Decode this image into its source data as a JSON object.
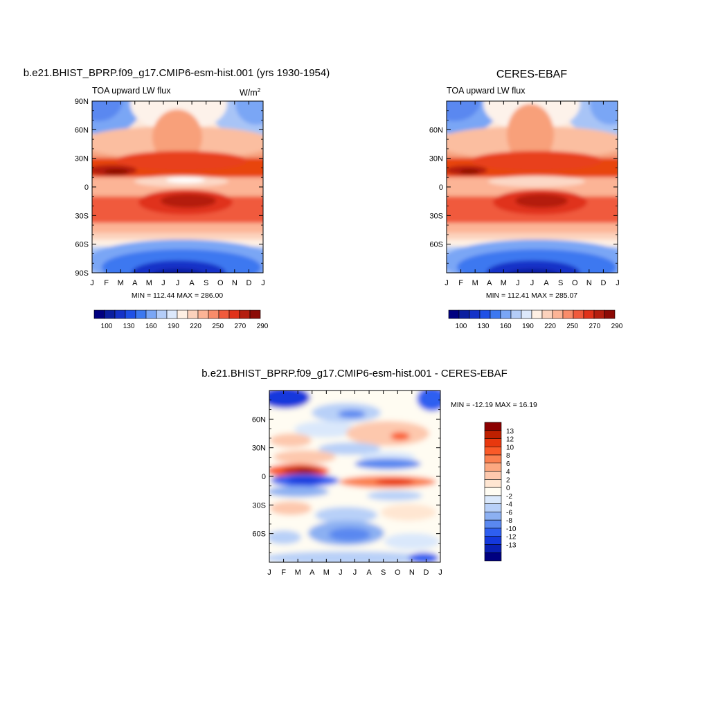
{
  "chart_data": [
    {
      "type": "heatmap",
      "title": "b.e21.BHIST_BPRP.f09_g17.CMIP6-esm-hist.001 (yrs 1930-1954)",
      "left_label": "TOA upward LW flux",
      "units_base": "W/m",
      "units_exp": "2",
      "x_ticks": [
        "J",
        "F",
        "M",
        "A",
        "M",
        "J",
        "J",
        "A",
        "S",
        "O",
        "N",
        "D",
        "J"
      ],
      "y_ticks": [
        "90N",
        "60N",
        "30N",
        "0",
        "30S",
        "60S",
        "90S"
      ],
      "stats": "MIN = 112.44 MAX = 286.00",
      "min": 112.44,
      "max": 286.0
    },
    {
      "type": "heatmap",
      "title": "CERES-EBAF",
      "left_label": "TOA upward LW flux",
      "x_ticks": [
        "J",
        "F",
        "M",
        "A",
        "M",
        "J",
        "J",
        "A",
        "S",
        "O",
        "N",
        "D",
        "J"
      ],
      "y_ticks": [
        "",
        "60N",
        "30N",
        "0",
        "30S",
        "60S",
        ""
      ],
      "stats": "MIN = 112.41 MAX = 285.07",
      "min": 112.41,
      "max": 285.07
    },
    {
      "type": "heatmap",
      "title": "b.e21.BHIST_BPRP.f09_g17.CMIP6-esm-hist.001 - CERES-EBAF",
      "x_ticks": [
        "J",
        "F",
        "M",
        "A",
        "M",
        "J",
        "J",
        "A",
        "S",
        "O",
        "N",
        "D",
        "J"
      ],
      "y_ticks": [
        "",
        "60N",
        "30N",
        "0",
        "30S",
        "60S",
        ""
      ],
      "stats": "MIN = -12.19 MAX =  16.19",
      "min": -12.19,
      "max": 16.19
    }
  ],
  "colorbar_top": {
    "labels": [
      "100",
      "130",
      "160",
      "190",
      "220",
      "250",
      "270",
      "290"
    ],
    "colors": [
      "#000080",
      "#0a1ea0",
      "#1432c8",
      "#1e50e6",
      "#3c78f0",
      "#7aa6f5",
      "#b4cdf8",
      "#dce8fb",
      "#fff0e4",
      "#fcd2bc",
      "#fcb496",
      "#f88c6a",
      "#f05a3c",
      "#e0321a",
      "#b41e0f",
      "#8c0a05"
    ]
  },
  "colorbar_diff": {
    "labels": [
      "13",
      "12",
      "10",
      "8",
      "6",
      "4",
      "2",
      "0",
      "-2",
      "-4",
      "-6",
      "-8",
      "-10",
      "-12",
      "-13"
    ],
    "colors": [
      "#8c0000",
      "#be2000",
      "#e8380e",
      "#fa5a28",
      "#fb8050",
      "#fca880",
      "#fdc8ad",
      "#ffe6d2",
      "#fffcf2",
      "#dae8fb",
      "#b8d0f8",
      "#8cb0f2",
      "#5a88f0",
      "#2e5ef0",
      "#1438dc",
      "#0a20b4",
      "#000080"
    ]
  }
}
